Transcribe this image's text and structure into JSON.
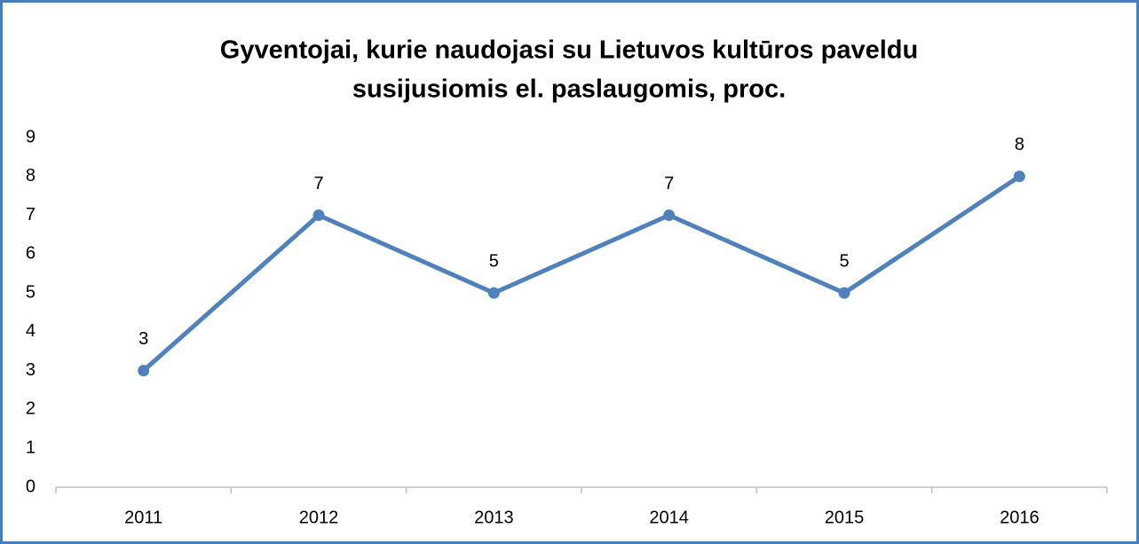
{
  "chart_data": {
    "type": "line",
    "title": [
      "Gyventojai, kurie naudojasi su Lietuvos kultūros paveldu",
      "susijusiomis el. paslaugomis, proc."
    ],
    "categories": [
      "2011",
      "2012",
      "2013",
      "2014",
      "2015",
      "2016"
    ],
    "series": [
      {
        "name": "Gyventojai",
        "color": "#4f81bd",
        "values": [
          3,
          7,
          5,
          7,
          5,
          8
        ]
      }
    ],
    "ylim": [
      0,
      9
    ],
    "yticks": [
      0,
      1,
      2,
      3,
      4,
      5,
      6,
      7,
      8,
      9
    ],
    "grid": false
  }
}
